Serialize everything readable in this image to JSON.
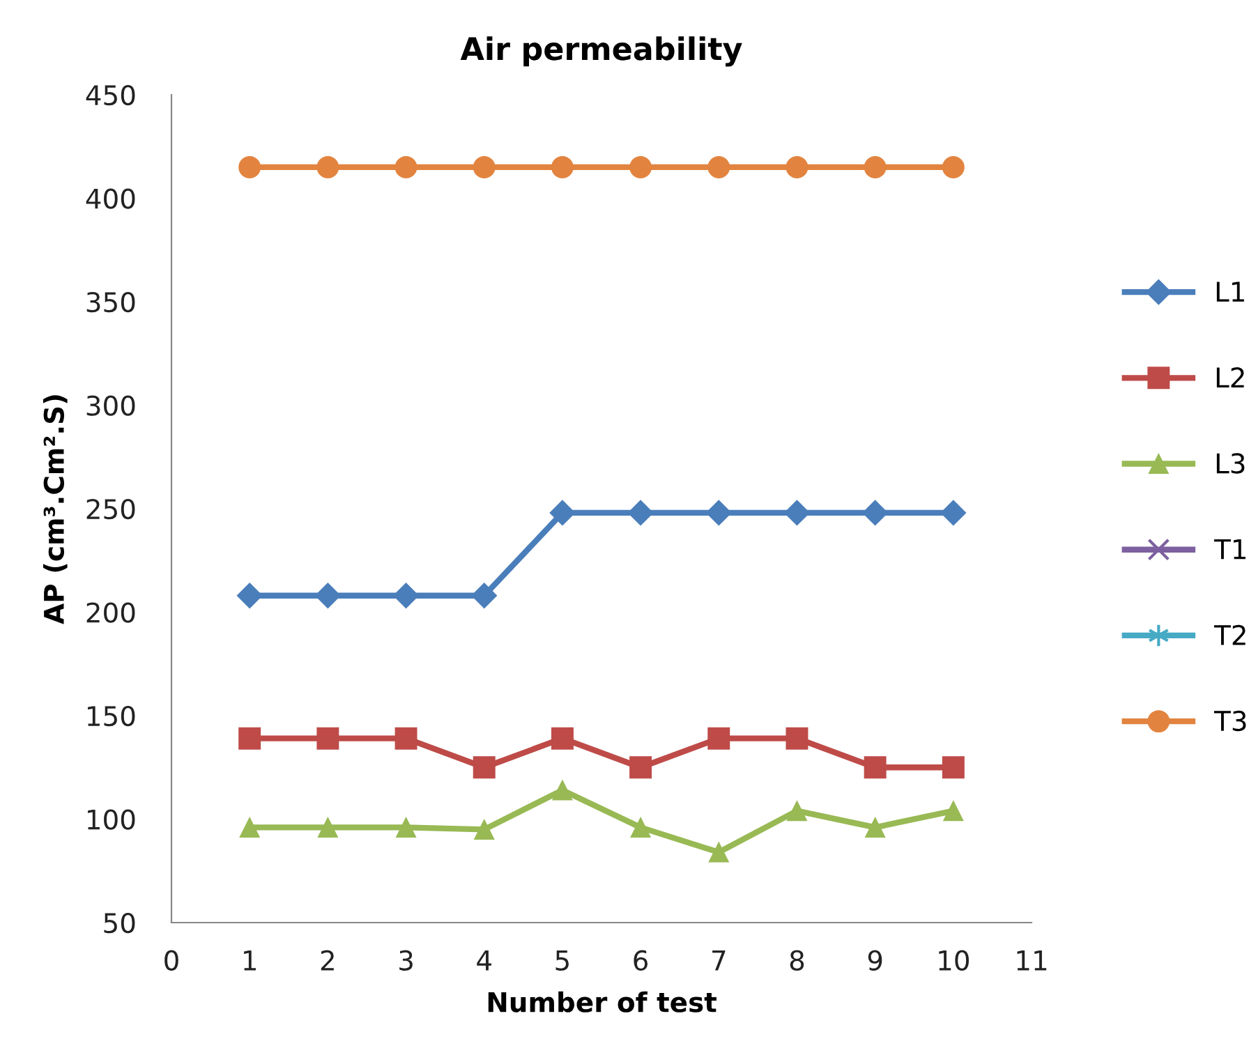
{
  "chart_data": {
    "type": "line",
    "title": "Air permeability",
    "xlabel": "Number of test",
    "ylabel": "AP (cm³.Cm².S)",
    "x": [
      1,
      2,
      3,
      4,
      5,
      6,
      7,
      8,
      9,
      10
    ],
    "series": [
      {
        "name": "L1",
        "color": "#4a7ebb",
        "marker": "diamond",
        "values": [
          208,
          208,
          208,
          208,
          248,
          248,
          248,
          248,
          248,
          248
        ]
      },
      {
        "name": "L2",
        "color": "#be4b48",
        "marker": "square",
        "values": [
          139,
          139,
          139,
          125,
          139,
          125,
          139,
          139,
          125,
          125
        ]
      },
      {
        "name": "L3",
        "color": "#98b954",
        "marker": "triangle",
        "values": [
          96,
          96,
          96,
          95,
          114,
          96,
          84,
          104,
          96,
          104
        ]
      },
      {
        "name": "T1",
        "color": "#7d60a0",
        "marker": "cross",
        "values": [
          null,
          null,
          null,
          null,
          null,
          null,
          null,
          null,
          null,
          null
        ]
      },
      {
        "name": "T2",
        "color": "#46aac5",
        "marker": "star",
        "values": [
          null,
          null,
          null,
          null,
          null,
          null,
          null,
          null,
          null,
          null
        ]
      },
      {
        "name": "T3",
        "color": "#e2843f",
        "marker": "circle",
        "values": [
          415,
          415,
          415,
          415,
          415,
          415,
          415,
          415,
          415,
          415
        ]
      }
    ],
    "xlim": [
      0,
      11
    ],
    "xticks": [
      0,
      1,
      2,
      3,
      4,
      5,
      6,
      7,
      8,
      9,
      10,
      11
    ],
    "ylim": [
      50,
      450
    ],
    "yticks": [
      50,
      100,
      150,
      200,
      250,
      300,
      350,
      400,
      450
    ],
    "grid": false,
    "legend": "right",
    "line_style": "solid"
  }
}
